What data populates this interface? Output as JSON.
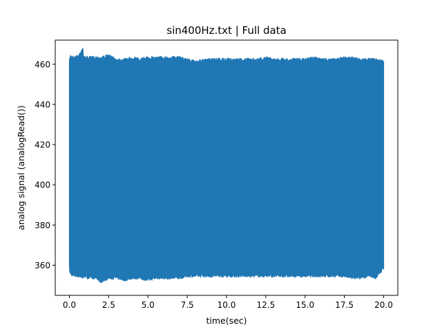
{
  "chart_data": {
    "type": "line",
    "title": "sin400Hz.txt | Full data",
    "xlabel": "time(sec)",
    "ylabel": "analog signal (analogRead())",
    "xlim": [
      -0.9,
      20.9
    ],
    "ylim": [
      345,
      472
    ],
    "x_ticks": [
      0.0,
      2.5,
      5.0,
      7.5,
      10.0,
      12.5,
      15.0,
      17.5,
      20.0
    ],
    "x_tick_labels": [
      "0.0",
      "2.5",
      "5.0",
      "7.5",
      "10.0",
      "12.5",
      "15.0",
      "17.5",
      "20.0"
    ],
    "y_ticks": [
      360,
      380,
      400,
      420,
      440,
      460
    ],
    "y_tick_labels": [
      "360",
      "380",
      "400",
      "420",
      "440",
      "460"
    ],
    "grid": false,
    "legend": "none",
    "series": [
      {
        "color": "#1f77b4",
        "signal": "sine 400 Hz",
        "x_range": [
          0.0,
          20.0
        ],
        "envelope": {
          "t": [
            0.0,
            0.05,
            0.3,
            0.6,
            0.85,
            0.9,
            1.2,
            1.7,
            2.0,
            2.5,
            3.0,
            3.5,
            4.0,
            4.5,
            5.0,
            5.5,
            6.0,
            6.5,
            7.0,
            7.5,
            8.0,
            9.0,
            10.0,
            11.0,
            12.0,
            12.5,
            13.0,
            14.0,
            15.0,
            15.5,
            16.0,
            17.0,
            17.5,
            18.0,
            18.5,
            19.0,
            19.5,
            20.0
          ],
          "max": [
            462,
            465,
            464,
            465,
            469,
            464,
            464,
            464,
            464,
            465,
            463,
            463,
            464,
            463,
            464,
            464,
            464,
            464,
            464,
            463,
            462,
            463,
            463,
            463,
            463,
            464,
            463,
            463,
            463,
            464,
            463,
            463,
            464,
            464,
            463,
            463,
            463,
            462
          ],
          "min": [
            358,
            355,
            354,
            354,
            353,
            354,
            353,
            353,
            351,
            353,
            353,
            352,
            353,
            353,
            352,
            353,
            353,
            353,
            353,
            354,
            354,
            354,
            354,
            354,
            354,
            354,
            354,
            354,
            354,
            354,
            354,
            354,
            354,
            353,
            353,
            354,
            353,
            358
          ]
        }
      }
    ]
  }
}
